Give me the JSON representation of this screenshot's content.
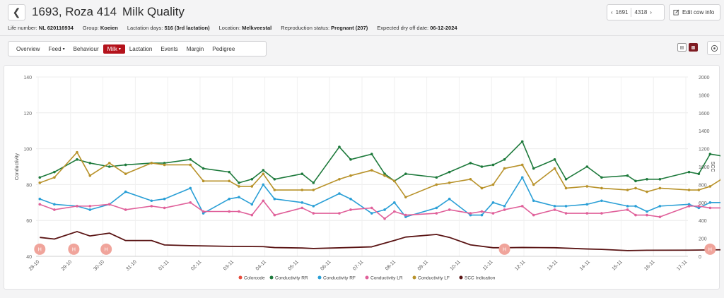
{
  "header": {
    "cow_number": "1693, Roza 414",
    "page_name": "Milk Quality",
    "nav_prev": "1691",
    "nav_next": "4318",
    "edit_label": "Edit cow info"
  },
  "info": [
    {
      "label": "Life number:",
      "value": "NL 620116934"
    },
    {
      "label": "Group:",
      "value": "Koeien"
    },
    {
      "label": "Lactation days:",
      "value": "516 (3rd lactation)"
    },
    {
      "label": "Location:",
      "value": "Melkveestal"
    },
    {
      "label": "Reproduction status:",
      "value": "Pregnant (207)"
    },
    {
      "label": "Expected dry off date:",
      "value": "06-12-2024"
    }
  ],
  "tabs": [
    {
      "label": "Overview",
      "active": false,
      "dropdown": false
    },
    {
      "label": "Feed",
      "active": false,
      "dropdown": true
    },
    {
      "label": "Behaviour",
      "active": false,
      "dropdown": false
    },
    {
      "label": "Milk",
      "active": true,
      "dropdown": true
    },
    {
      "label": "Lactation",
      "active": false,
      "dropdown": false
    },
    {
      "label": "Events",
      "active": false,
      "dropdown": false
    },
    {
      "label": "Margin",
      "active": false,
      "dropdown": false
    },
    {
      "label": "Pedigree",
      "active": false,
      "dropdown": false
    }
  ],
  "colors": {
    "accent": "#b4121b"
  },
  "icons": {
    "back": "chevron-left-icon",
    "edit": "edit-icon",
    "settings": "target-icon",
    "view_table": "table-icon",
    "view_chart": "chart-icon"
  },
  "chart_data": {
    "type": "line",
    "ylabel": "Conductivity",
    "y2label": "SCC",
    "ylim": [
      40,
      140
    ],
    "y2lim": [
      0,
      2000
    ],
    "yticks": [
      40,
      60,
      80,
      100,
      120,
      140
    ],
    "y2ticks": [
      0,
      200,
      400,
      600,
      800,
      1000,
      1200,
      1400,
      1600,
      1800,
      2000
    ],
    "xlim": [
      0,
      20.9
    ],
    "xticks": [
      "28-10",
      "29-10",
      "30-10",
      "31-10",
      "01-11",
      "02-11",
      "03-11",
      "04-11",
      "05-11",
      "06-11",
      "07-11",
      "08-11",
      "09-11",
      "10-11",
      "11-11",
      "12-11",
      "13-11",
      "14-11",
      "15-11",
      "16-11",
      "17-11"
    ],
    "grid": true,
    "legend_position": "bottom",
    "series": [
      {
        "name": "Colorcode",
        "color": "#e74c3c",
        "marker": "H",
        "points": [
          [
            0.05,
            44
          ],
          [
            1.1,
            44
          ],
          [
            2.1,
            44
          ],
          [
            14.4,
            44
          ],
          [
            20.75,
            44
          ]
        ]
      },
      {
        "name": "Conductivity RR",
        "color": "#1e7a3c",
        "points": [
          [
            0.05,
            84
          ],
          [
            0.5,
            87
          ],
          [
            1.2,
            94
          ],
          [
            1.6,
            92
          ],
          [
            2.2,
            90
          ],
          [
            2.7,
            91
          ],
          [
            3.5,
            92
          ],
          [
            3.9,
            92
          ],
          [
            4.7,
            94
          ],
          [
            5.1,
            89
          ],
          [
            5.9,
            87
          ],
          [
            6.2,
            81
          ],
          [
            6.6,
            83
          ],
          [
            6.95,
            88
          ],
          [
            7.3,
            83
          ],
          [
            8.15,
            86
          ],
          [
            8.5,
            81
          ],
          [
            9.3,
            101
          ],
          [
            9.65,
            94
          ],
          [
            10.3,
            97
          ],
          [
            10.7,
            86
          ],
          [
            11.0,
            82
          ],
          [
            11.35,
            86
          ],
          [
            12.3,
            84
          ],
          [
            12.7,
            87
          ],
          [
            13.35,
            92
          ],
          [
            13.7,
            90
          ],
          [
            14.05,
            91
          ],
          [
            14.4,
            94
          ],
          [
            14.95,
            104
          ],
          [
            15.3,
            89
          ],
          [
            15.95,
            94
          ],
          [
            16.3,
            83
          ],
          [
            16.95,
            90
          ],
          [
            17.4,
            84
          ],
          [
            18.2,
            85
          ],
          [
            18.45,
            82
          ],
          [
            18.8,
            83
          ],
          [
            19.2,
            83
          ],
          [
            20.1,
            87
          ],
          [
            20.4,
            86
          ],
          [
            20.75,
            97
          ],
          [
            21.1,
            96
          ]
        ]
      },
      {
        "name": "Conductivity RF",
        "color": "#2a9fd6",
        "points": [
          [
            0.05,
            72
          ],
          [
            0.5,
            69
          ],
          [
            1.2,
            68
          ],
          [
            1.6,
            66
          ],
          [
            2.2,
            69
          ],
          [
            2.7,
            76
          ],
          [
            3.5,
            71
          ],
          [
            3.9,
            72
          ],
          [
            4.7,
            78
          ],
          [
            5.1,
            64
          ],
          [
            5.9,
            72
          ],
          [
            6.2,
            73
          ],
          [
            6.6,
            69
          ],
          [
            6.95,
            80
          ],
          [
            7.3,
            72
          ],
          [
            8.15,
            70
          ],
          [
            8.5,
            68
          ],
          [
            9.3,
            75
          ],
          [
            9.65,
            72
          ],
          [
            10.3,
            64
          ],
          [
            10.7,
            66
          ],
          [
            11.0,
            70
          ],
          [
            11.35,
            62
          ],
          [
            12.3,
            67
          ],
          [
            12.7,
            72
          ],
          [
            13.35,
            63
          ],
          [
            13.7,
            63
          ],
          [
            14.05,
            70
          ],
          [
            14.4,
            68
          ],
          [
            14.95,
            84
          ],
          [
            15.3,
            71
          ],
          [
            15.95,
            68
          ],
          [
            16.3,
            68
          ],
          [
            16.95,
            69
          ],
          [
            17.4,
            71
          ],
          [
            18.2,
            68
          ],
          [
            18.45,
            68
          ],
          [
            18.8,
            65
          ],
          [
            19.2,
            68
          ],
          [
            20.1,
            69
          ],
          [
            20.4,
            67
          ],
          [
            20.75,
            70
          ],
          [
            21.1,
            70
          ]
        ]
      },
      {
        "name": "Conductivity LR",
        "color": "#e0609a",
        "points": [
          [
            0.05,
            69
          ],
          [
            0.5,
            66
          ],
          [
            1.2,
            68
          ],
          [
            1.6,
            68
          ],
          [
            2.2,
            69
          ],
          [
            2.7,
            66
          ],
          [
            3.5,
            68
          ],
          [
            3.9,
            67
          ],
          [
            4.7,
            70
          ],
          [
            5.1,
            65
          ],
          [
            5.9,
            65
          ],
          [
            6.2,
            65
          ],
          [
            6.6,
            63
          ],
          [
            6.95,
            71
          ],
          [
            7.3,
            63
          ],
          [
            8.15,
            67
          ],
          [
            8.5,
            64
          ],
          [
            9.3,
            64
          ],
          [
            9.65,
            66
          ],
          [
            10.3,
            67
          ],
          [
            10.7,
            61
          ],
          [
            11.0,
            65
          ],
          [
            11.35,
            63
          ],
          [
            12.3,
            64
          ],
          [
            12.7,
            66
          ],
          [
            13.35,
            64
          ],
          [
            13.7,
            65
          ],
          [
            14.05,
            64
          ],
          [
            14.4,
            66
          ],
          [
            14.95,
            68
          ],
          [
            15.3,
            63
          ],
          [
            15.95,
            66
          ],
          [
            16.3,
            64
          ],
          [
            16.95,
            64
          ],
          [
            17.4,
            64
          ],
          [
            18.2,
            66
          ],
          [
            18.45,
            63
          ],
          [
            18.8,
            63
          ],
          [
            19.2,
            62
          ],
          [
            20.1,
            68
          ],
          [
            20.4,
            68
          ],
          [
            20.75,
            67
          ],
          [
            21.1,
            67
          ]
        ]
      },
      {
        "name": "Conductivity LF",
        "color": "#b8922a",
        "points": [
          [
            0.05,
            81
          ],
          [
            0.5,
            84
          ],
          [
            1.2,
            98
          ],
          [
            1.6,
            85
          ],
          [
            2.2,
            92
          ],
          [
            2.7,
            86
          ],
          [
            3.5,
            92
          ],
          [
            3.9,
            91
          ],
          [
            4.7,
            91
          ],
          [
            5.1,
            82
          ],
          [
            5.9,
            82
          ],
          [
            6.2,
            79
          ],
          [
            6.6,
            79
          ],
          [
            6.95,
            86
          ],
          [
            7.3,
            77
          ],
          [
            8.15,
            77
          ],
          [
            8.5,
            77
          ],
          [
            9.3,
            83
          ],
          [
            9.65,
            85
          ],
          [
            10.3,
            88
          ],
          [
            10.7,
            85
          ],
          [
            11.0,
            82
          ],
          [
            11.35,
            73
          ],
          [
            12.3,
            80
          ],
          [
            12.7,
            81
          ],
          [
            13.35,
            83
          ],
          [
            13.7,
            78
          ],
          [
            14.05,
            80
          ],
          [
            14.4,
            89
          ],
          [
            14.95,
            91
          ],
          [
            15.3,
            80
          ],
          [
            15.95,
            89
          ],
          [
            16.3,
            78
          ],
          [
            16.95,
            79
          ],
          [
            17.4,
            78
          ],
          [
            18.2,
            77
          ],
          [
            18.45,
            78
          ],
          [
            18.8,
            76
          ],
          [
            19.2,
            78
          ],
          [
            20.1,
            77
          ],
          [
            20.4,
            77
          ],
          [
            20.75,
            79
          ],
          [
            21.1,
            83
          ]
        ]
      },
      {
        "name": "SCC Indication",
        "color": "#5a1414",
        "points": [
          [
            0.05,
            211
          ],
          [
            0.5,
            193
          ],
          [
            1.2,
            276
          ],
          [
            1.6,
            227
          ],
          [
            2.2,
            259
          ],
          [
            2.7,
            176
          ],
          [
            3.5,
            176
          ],
          [
            3.9,
            127
          ],
          [
            4.7,
            119
          ],
          [
            5.9,
            111
          ],
          [
            6.95,
            108
          ],
          [
            7.3,
            98
          ],
          [
            8.15,
            93
          ],
          [
            8.5,
            87
          ],
          [
            9.3,
            95
          ],
          [
            10.3,
            106
          ],
          [
            11.0,
            177
          ],
          [
            11.35,
            215
          ],
          [
            12.3,
            244
          ],
          [
            12.7,
            211
          ],
          [
            13.35,
            128
          ],
          [
            14.05,
            96
          ],
          [
            14.4,
            96
          ],
          [
            14.95,
            99
          ],
          [
            15.95,
            96
          ],
          [
            16.95,
            82
          ],
          [
            17.4,
            78
          ],
          [
            18.2,
            64
          ],
          [
            18.8,
            68
          ],
          [
            20.1,
            69
          ],
          [
            21.1,
            73
          ]
        ]
      }
    ]
  }
}
